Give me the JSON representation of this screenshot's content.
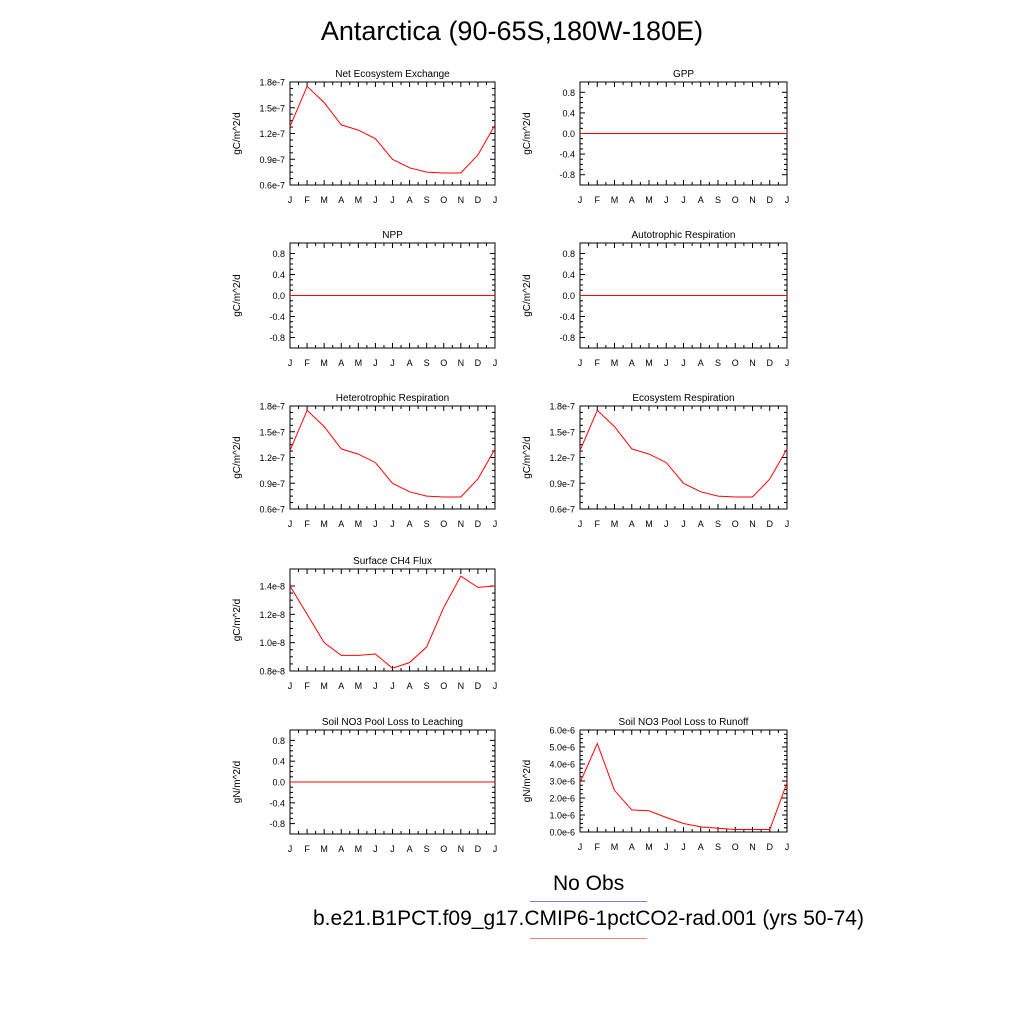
{
  "page": {
    "title": "Antarctica (90-65S,180W-180E)"
  },
  "legend": {
    "obs_label": "No Obs",
    "case_label": "b.e21.B1PCT.f09_g17.CMIP6-1pctCO2-rad.001 (yrs 50-74)",
    "obs_color": "#7b7bff",
    "case_color": "#ff7b7b"
  },
  "colors": {
    "series": "#ff0000",
    "axes": "#000000"
  },
  "chart_data": [
    {
      "type": "line",
      "title": "Net Ecosystem Exchange",
      "ylabel": "gC/m^2/d",
      "xlabel": "",
      "x": [
        "J",
        "F",
        "M",
        "A",
        "M",
        "J",
        "J",
        "A",
        "S",
        "O",
        "N",
        "D",
        "J"
      ],
      "yticks": [
        "0.6e-7",
        "0.9e-7",
        "1.2e-7",
        "1.5e-7",
        "1.8e-7"
      ],
      "ylim": [
        6e-08,
        1.8e-07
      ],
      "series": [
        {
          "values": [
            1.28e-07,
            1.75e-07,
            1.56e-07,
            1.3e-07,
            1.24e-07,
            1.14e-07,
            9e-08,
            8e-08,
            7.5e-08,
            7.4e-08,
            7.4e-08,
            9.5e-08,
            1.3e-07
          ]
        }
      ]
    },
    {
      "type": "line",
      "title": "GPP",
      "ylabel": "gC/m^2/d",
      "xlabel": "",
      "x": [
        "J",
        "F",
        "M",
        "A",
        "M",
        "J",
        "J",
        "A",
        "S",
        "O",
        "N",
        "D",
        "J"
      ],
      "yticks": [
        "-0.8",
        "-0.4",
        "0.0",
        "0.4",
        "0.8"
      ],
      "ylim": [
        -1.0,
        1.0
      ],
      "series": [
        {
          "values": [
            0,
            0,
            0,
            0,
            0,
            0,
            0,
            0,
            0,
            0,
            0,
            0,
            0
          ]
        }
      ]
    },
    {
      "type": "line",
      "title": "NPP",
      "ylabel": "gC/m^2/d",
      "xlabel": "",
      "x": [
        "J",
        "F",
        "M",
        "A",
        "M",
        "J",
        "J",
        "A",
        "S",
        "O",
        "N",
        "D",
        "J"
      ],
      "yticks": [
        "-0.8",
        "-0.4",
        "0.0",
        "0.4",
        "0.8"
      ],
      "ylim": [
        -1.0,
        1.0
      ],
      "series": [
        {
          "values": [
            0,
            0,
            0,
            0,
            0,
            0,
            0,
            0,
            0,
            0,
            0,
            0,
            0
          ]
        }
      ]
    },
    {
      "type": "line",
      "title": "Autotrophic Respiration",
      "ylabel": "gC/m^2/d",
      "xlabel": "",
      "x": [
        "J",
        "F",
        "M",
        "A",
        "M",
        "J",
        "J",
        "A",
        "S",
        "O",
        "N",
        "D",
        "J"
      ],
      "yticks": [
        "-0.8",
        "-0.4",
        "0.0",
        "0.4",
        "0.8"
      ],
      "ylim": [
        -1.0,
        1.0
      ],
      "series": [
        {
          "values": [
            0,
            0,
            0,
            0,
            0,
            0,
            0,
            0,
            0,
            0,
            0,
            0,
            0
          ]
        }
      ]
    },
    {
      "type": "line",
      "title": "Heterotrophic Respiration",
      "ylabel": "gC/m^2/d",
      "xlabel": "",
      "x": [
        "J",
        "F",
        "M",
        "A",
        "M",
        "J",
        "J",
        "A",
        "S",
        "O",
        "N",
        "D",
        "J"
      ],
      "yticks": [
        "0.6e-7",
        "0.9e-7",
        "1.2e-7",
        "1.5e-7",
        "1.8e-7"
      ],
      "ylim": [
        6e-08,
        1.8e-07
      ],
      "series": [
        {
          "values": [
            1.28e-07,
            1.75e-07,
            1.56e-07,
            1.3e-07,
            1.24e-07,
            1.14e-07,
            9e-08,
            8e-08,
            7.5e-08,
            7.4e-08,
            7.4e-08,
            9.5e-08,
            1.3e-07
          ]
        }
      ]
    },
    {
      "type": "line",
      "title": "Ecosystem Respiration",
      "ylabel": "gC/m^2/d",
      "xlabel": "",
      "x": [
        "J",
        "F",
        "M",
        "A",
        "M",
        "J",
        "J",
        "A",
        "S",
        "O",
        "N",
        "D",
        "J"
      ],
      "yticks": [
        "0.6e-7",
        "0.9e-7",
        "1.2e-7",
        "1.5e-7",
        "1.8e-7"
      ],
      "ylim": [
        6e-08,
        1.8e-07
      ],
      "series": [
        {
          "values": [
            1.28e-07,
            1.75e-07,
            1.56e-07,
            1.3e-07,
            1.24e-07,
            1.14e-07,
            9e-08,
            8e-08,
            7.5e-08,
            7.4e-08,
            7.4e-08,
            9.5e-08,
            1.3e-07
          ]
        }
      ]
    },
    {
      "type": "line",
      "title": "Surface CH4 Flux",
      "ylabel": "gC/m^2/d",
      "xlabel": "",
      "x": [
        "J",
        "F",
        "M",
        "A",
        "M",
        "J",
        "J",
        "A",
        "S",
        "O",
        "N",
        "D",
        "J"
      ],
      "yticks": [
        "0.8e-8",
        "1.0e-8",
        "1.2e-8",
        "1.4e-8"
      ],
      "ylim": [
        8e-09,
        1.52e-08
      ],
      "series": [
        {
          "values": [
            1.4e-08,
            1.2e-08,
            1e-08,
            9.1e-09,
            9.1e-09,
            9.2e-09,
            8.2e-09,
            8.6e-09,
            9.7e-09,
            1.25e-08,
            1.47e-08,
            1.39e-08,
            1.4e-08
          ]
        }
      ]
    },
    {
      "type": "line",
      "title": "Soil NO3 Pool Loss to Leaching",
      "ylabel": "gN/m^2/d",
      "xlabel": "",
      "x": [
        "J",
        "F",
        "M",
        "A",
        "M",
        "J",
        "J",
        "A",
        "S",
        "O",
        "N",
        "D",
        "J"
      ],
      "yticks": [
        "-0.8",
        "-0.4",
        "0.0",
        "0.4",
        "0.8"
      ],
      "ylim": [
        -1.0,
        1.0
      ],
      "series": [
        {
          "values": [
            0,
            0,
            0,
            0,
            0,
            0,
            0,
            0,
            0,
            0,
            0,
            0,
            0
          ]
        }
      ]
    },
    {
      "type": "line",
      "title": "Soil NO3 Pool Loss to Runoff",
      "ylabel": "gN/m^2/d",
      "xlabel": "",
      "x": [
        "J",
        "F",
        "M",
        "A",
        "M",
        "J",
        "J",
        "A",
        "S",
        "O",
        "N",
        "D",
        "J"
      ],
      "yticks": [
        "0.0e-6",
        "1.0e-6",
        "2.0e-6",
        "3.0e-6",
        "4.0e-6",
        "5.0e-6",
        "6.0e-6"
      ],
      "ylim": [
        0.0,
        6e-06
      ],
      "series": [
        {
          "values": [
            2.9e-06,
            5.2e-06,
            2.45e-06,
            1.3e-06,
            1.25e-06,
            8.5e-07,
            5e-07,
            3e-07,
            2.2e-07,
            1.5e-07,
            1.5e-07,
            1.5e-07,
            2.9e-06
          ]
        }
      ]
    }
  ]
}
